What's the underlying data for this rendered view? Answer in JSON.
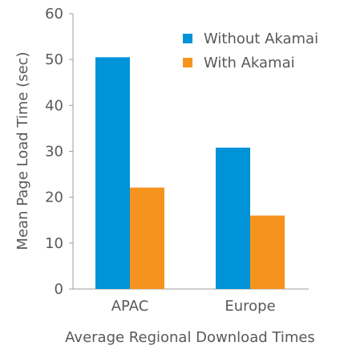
{
  "chart_data": {
    "type": "bar",
    "categories": [
      "APAC",
      "Europe"
    ],
    "series": [
      {
        "name": "Without Akamai",
        "color": "#0093d8",
        "values": [
          50.5,
          30.8
        ]
      },
      {
        "name": "With Akamai",
        "color": "#f6931e",
        "values": [
          22.1,
          16.0
        ]
      }
    ],
    "xlabel": "Average Regional Download Times",
    "ylabel": "Mean Page Load Time (sec)",
    "ylim": [
      0,
      60
    ],
    "yticks": [
      0,
      10,
      20,
      30,
      40,
      50,
      60
    ],
    "yticklabels": [
      "0",
      "10",
      "20",
      "30",
      "40",
      "50",
      "60"
    ],
    "grid": false,
    "legend_position": "top-right",
    "axis_color": "#9e9e9e",
    "text_color": "#595959"
  }
}
